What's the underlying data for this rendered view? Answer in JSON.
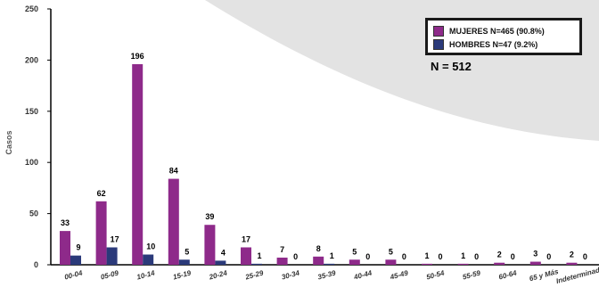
{
  "chart_data": {
    "type": "bar",
    "categories": [
      "00-04",
      "05-09",
      "10-14",
      "15-19",
      "20-24",
      "25-29",
      "30-34",
      "35-39",
      "40-44",
      "45-49",
      "50-54",
      "55-59",
      "60-64",
      "65 y Más",
      "Indeterminado"
    ],
    "series": [
      {
        "name": "MUJERES N=465 (90.8%)",
        "values": [
          33,
          62,
          196,
          84,
          39,
          17,
          7,
          8,
          5,
          5,
          1,
          1,
          2,
          3,
          2
        ],
        "color": "#8E2A8A"
      },
      {
        "name": "HOMBRES N=47 (9.2%)",
        "values": [
          9,
          17,
          10,
          5,
          4,
          1,
          0,
          1,
          0,
          0,
          0,
          0,
          0,
          0,
          0
        ],
        "color": "#2B3A7A"
      }
    ],
    "title": "",
    "xlabel": "",
    "ylabel": "Casos",
    "ylim": [
      0,
      250
    ],
    "yticks": [
      "0",
      "50",
      "100",
      "150",
      "200",
      "250"
    ],
    "total_label": "N = 512",
    "legend_position": "top-right",
    "grid": false
  }
}
